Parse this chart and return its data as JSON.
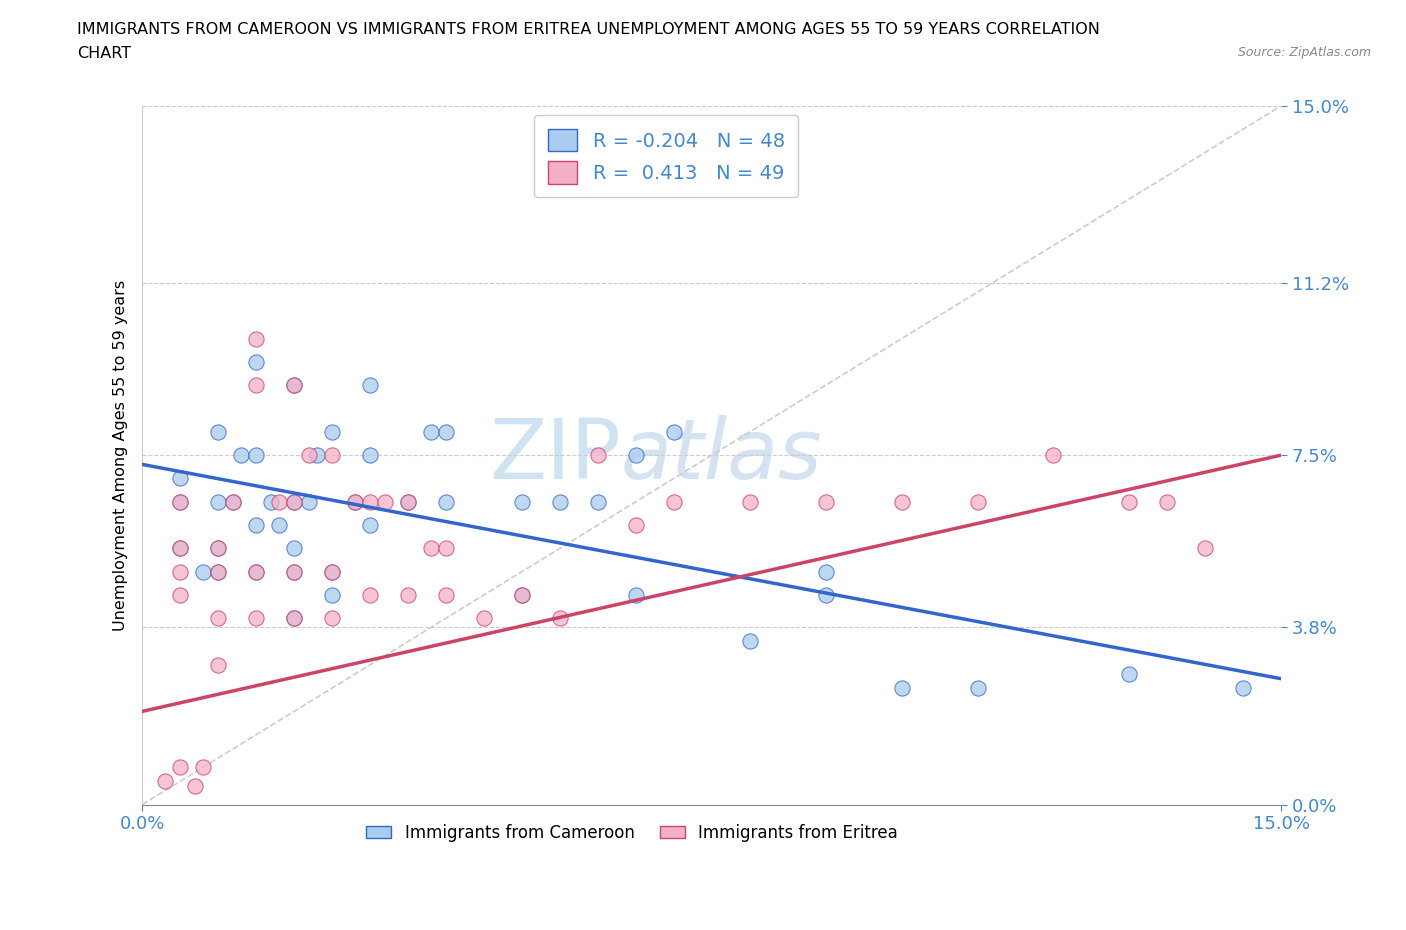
{
  "title_line1": "IMMIGRANTS FROM CAMEROON VS IMMIGRANTS FROM ERITREA UNEMPLOYMENT AMONG AGES 55 TO 59 YEARS CORRELATION",
  "title_line2": "CHART",
  "source_text": "Source: ZipAtlas.com",
  "ylabel": "Unemployment Among Ages 55 to 59 years",
  "xlim": [
    0.0,
    0.15
  ],
  "ylim": [
    0.0,
    0.15
  ],
  "ytick_labels": [
    "0.0%",
    "3.8%",
    "7.5%",
    "11.2%",
    "15.0%"
  ],
  "ytick_values": [
    0.0,
    0.038,
    0.075,
    0.112,
    0.15
  ],
  "xtick_labels": [
    "0.0%",
    "15.0%"
  ],
  "xtick_values": [
    0.0,
    0.15
  ],
  "grid_color": "#cccccc",
  "legend_label1": "Immigrants from Cameroon",
  "legend_label2": "Immigrants from Eritrea",
  "R1": -0.204,
  "N1": 48,
  "R2": 0.413,
  "N2": 49,
  "scatter_color1": "#aaccee",
  "scatter_color2": "#f4b0c8",
  "line_color1": "#3366cc",
  "line_color2": "#cc4466",
  "tick_color": "#4488cc",
  "cameroon_x": [
    0.005,
    0.005,
    0.005,
    0.008,
    0.01,
    0.01,
    0.01,
    0.01,
    0.012,
    0.013,
    0.015,
    0.015,
    0.015,
    0.015,
    0.017,
    0.018,
    0.02,
    0.02,
    0.02,
    0.02,
    0.02,
    0.022,
    0.023,
    0.025,
    0.025,
    0.025,
    0.028,
    0.03,
    0.03,
    0.03,
    0.035,
    0.038,
    0.04,
    0.04,
    0.05,
    0.05,
    0.055,
    0.06,
    0.065,
    0.065,
    0.07,
    0.08,
    0.09,
    0.09,
    0.1,
    0.11,
    0.13,
    0.145
  ],
  "cameroon_y": [
    0.055,
    0.065,
    0.07,
    0.05,
    0.05,
    0.055,
    0.065,
    0.08,
    0.065,
    0.075,
    0.05,
    0.06,
    0.075,
    0.095,
    0.065,
    0.06,
    0.04,
    0.05,
    0.055,
    0.065,
    0.09,
    0.065,
    0.075,
    0.045,
    0.05,
    0.08,
    0.065,
    0.06,
    0.075,
    0.09,
    0.065,
    0.08,
    0.065,
    0.08,
    0.045,
    0.065,
    0.065,
    0.065,
    0.045,
    0.075,
    0.08,
    0.035,
    0.045,
    0.05,
    0.025,
    0.025,
    0.028,
    0.025
  ],
  "eritrea_x": [
    0.003,
    0.005,
    0.005,
    0.005,
    0.005,
    0.007,
    0.008,
    0.01,
    0.01,
    0.01,
    0.01,
    0.012,
    0.015,
    0.015,
    0.015,
    0.015,
    0.018,
    0.02,
    0.02,
    0.02,
    0.02,
    0.022,
    0.025,
    0.025,
    0.025,
    0.028,
    0.03,
    0.03,
    0.032,
    0.035,
    0.035,
    0.038,
    0.04,
    0.04,
    0.045,
    0.05,
    0.055,
    0.06,
    0.065,
    0.07,
    0.08,
    0.09,
    0.1,
    0.11,
    0.12,
    0.13,
    0.135,
    0.14,
    0.005
  ],
  "eritrea_y": [
    0.005,
    0.045,
    0.05,
    0.055,
    0.065,
    0.004,
    0.008,
    0.03,
    0.04,
    0.05,
    0.055,
    0.065,
    0.04,
    0.05,
    0.09,
    0.1,
    0.065,
    0.04,
    0.05,
    0.065,
    0.09,
    0.075,
    0.04,
    0.05,
    0.075,
    0.065,
    0.045,
    0.065,
    0.065,
    0.045,
    0.065,
    0.055,
    0.045,
    0.055,
    0.04,
    0.045,
    0.04,
    0.075,
    0.06,
    0.065,
    0.065,
    0.065,
    0.065,
    0.065,
    0.075,
    0.065,
    0.065,
    0.055,
    0.008
  ],
  "cam_trendline_x0": 0.0,
  "cam_trendline_y0": 0.073,
  "cam_trendline_x1": 0.15,
  "cam_trendline_y1": 0.027,
  "eri_trendline_x0": 0.0,
  "eri_trendline_y0": 0.02,
  "eri_trendline_x1": 0.15,
  "eri_trendline_y1": 0.075
}
